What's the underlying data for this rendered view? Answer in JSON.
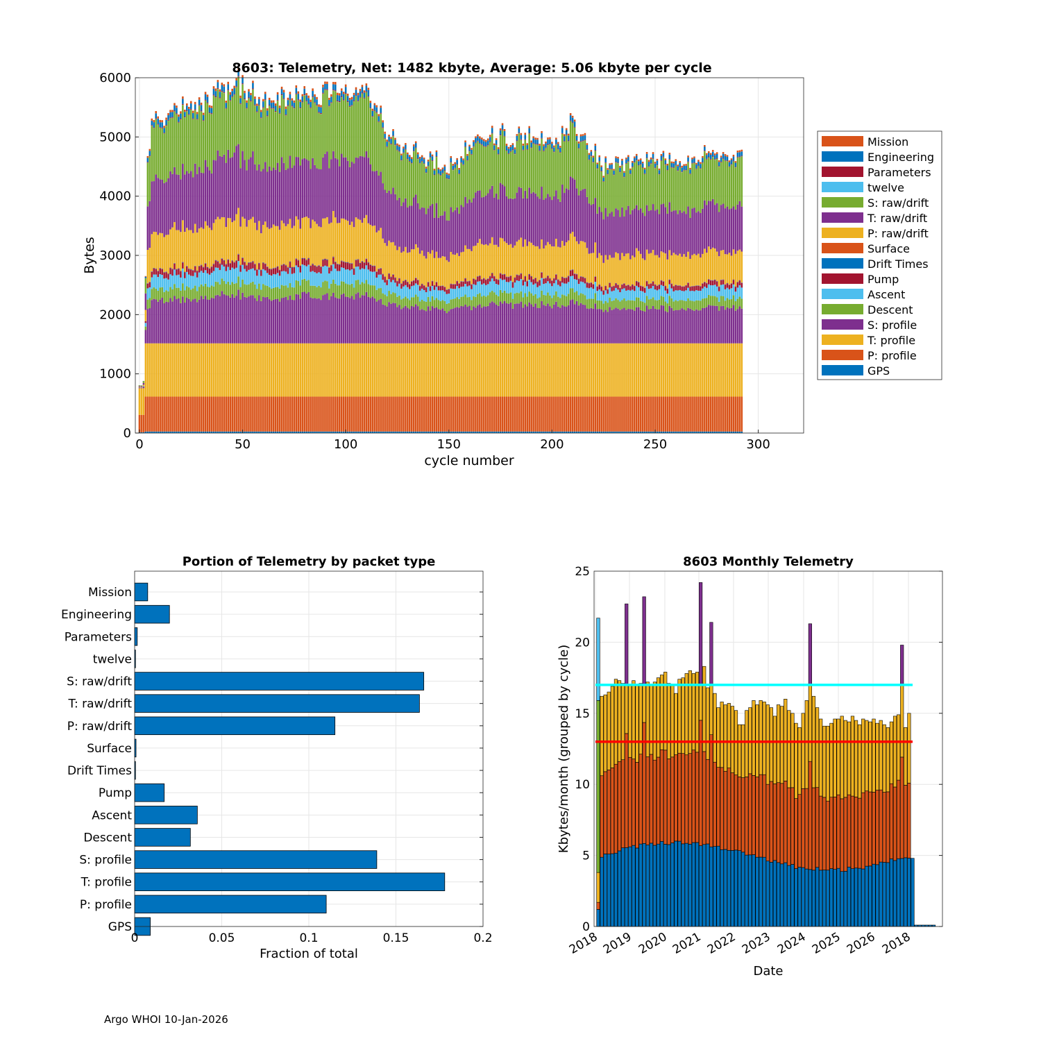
{
  "footer": "Argo WHOI 10-Jan-2026",
  "chart_data": [
    {
      "type": "bar",
      "stacked": true,
      "title": "8603: Telemetry, Net:   1482 kbyte,  Average: 5.06 kbyte per cycle",
      "xlabel": "cycle number",
      "ylabel": "Bytes",
      "xlim": [
        -2,
        322
      ],
      "ylim": [
        0,
        6000
      ],
      "xticks": [
        0,
        50,
        100,
        150,
        200,
        250,
        300
      ],
      "yticks": [
        0,
        1000,
        2000,
        3000,
        4000,
        5000,
        6000
      ],
      "grid": true,
      "legend_position": "right",
      "n_cycles": 293,
      "series_order_bottom_to_top": [
        "GPS",
        "P: profile",
        "T: profile",
        "S: profile",
        "Descent",
        "Ascent",
        "Pump",
        "Drift Times",
        "Surface",
        "P: raw/drift",
        "T: raw/drift",
        "S: raw/drift",
        "twelve",
        "Parameters",
        "Engineering",
        "Mission"
      ],
      "legend": [
        {
          "name": "Mission",
          "color": "#D95319"
        },
        {
          "name": "Engineering",
          "color": "#0072BD"
        },
        {
          "name": "Parameters",
          "color": "#A2142F"
        },
        {
          "name": "twelve",
          "color": "#4DBEEE"
        },
        {
          "name": "S: raw/drift",
          "color": "#77AC30"
        },
        {
          "name": "T: raw/drift",
          "color": "#7E2F8E"
        },
        {
          "name": "P: raw/drift",
          "color": "#EDB120"
        },
        {
          "name": "Surface",
          "color": "#D95319"
        },
        {
          "name": "Drift Times",
          "color": "#0072BD"
        },
        {
          "name": "Pump",
          "color": "#A2142F"
        },
        {
          "name": "Ascent",
          "color": "#4DBEEE"
        },
        {
          "name": "Descent",
          "color": "#77AC30"
        },
        {
          "name": "S: profile",
          "color": "#7E2F8E"
        },
        {
          "name": "T: profile",
          "color": "#EDB120"
        },
        {
          "name": "P: profile",
          "color": "#D95319"
        },
        {
          "name": "GPS",
          "color": "#0072BD"
        }
      ],
      "colors": {
        "GPS": "#0072BD",
        "P: profile": "#D95319",
        "T: profile": "#EDB120",
        "S: profile": "#7E2F8E",
        "Descent": "#77AC30",
        "Ascent": "#4DBEEE",
        "Pump": "#A2142F",
        "Drift Times": "#0072BD",
        "Surface": "#D95319",
        "P: raw/drift": "#EDB120",
        "T: raw/drift": "#7E2F8E",
        "S: raw/drift": "#77AC30",
        "twelve": "#4DBEEE",
        "Parameters": "#A2142F",
        "Engineering": "#0072BD",
        "Mission": "#D95319"
      },
      "typical_cycle_bytes": {
        "GPS": 25,
        "P: profile": 590,
        "T: profile": 900,
        "S: profile": 600,
        "Descent": 160,
        "Ascent": 180,
        "Pump": 80,
        "Drift Times": 5,
        "Surface": 5,
        "P: raw/drift": 520,
        "T: raw/drift": 780,
        "S: raw/drift": 760,
        "twelve": 2,
        "Parameters": 10,
        "Engineering": 70,
        "Mission": 30
      },
      "cycle_total_profile_keyframes": [
        [
          0,
          1200
        ],
        [
          1,
          480
        ],
        [
          2,
          1900
        ],
        [
          3,
          2600
        ],
        [
          4,
          4700
        ],
        [
          6,
          5300
        ],
        [
          20,
          5500
        ],
        [
          50,
          5900
        ],
        [
          60,
          5600
        ],
        [
          90,
          5800
        ],
        [
          110,
          5800
        ],
        [
          120,
          5000
        ],
        [
          150,
          4450
        ],
        [
          165,
          5050
        ],
        [
          200,
          4950
        ],
        [
          211,
          5250
        ],
        [
          225,
          4500
        ],
        [
          250,
          4650
        ],
        [
          265,
          4600
        ],
        [
          292,
          4750
        ]
      ]
    },
    {
      "type": "bar",
      "orientation": "horizontal",
      "title": "Portion of Telemetry by packet type",
      "xlabel": "Fraction of total",
      "ylabel": "",
      "xlim": [
        0,
        0.2
      ],
      "xticks": [
        0,
        0.05,
        0.1,
        0.15,
        0.2
      ],
      "xtick_labels": [
        "0",
        "0.05",
        "0.1",
        "0.15",
        "0.2"
      ],
      "grid": true,
      "categories": [
        "Mission",
        "Engineering",
        "Parameters",
        "twelve",
        "S: raw/drift",
        "T: raw/drift",
        "P: raw/drift",
        "Surface",
        "Drift Times",
        "Pump",
        "Ascent",
        "Descent",
        "S: profile",
        "T: profile",
        "P: profile",
        "GPS"
      ],
      "values": [
        0.0075,
        0.02,
        0.0015,
        0.0005,
        0.166,
        0.1635,
        0.115,
        0.0008,
        0.0005,
        0.017,
        0.036,
        0.032,
        0.139,
        0.178,
        0.11,
        0.009
      ],
      "color": "#0072BD"
    },
    {
      "type": "bar",
      "stacked": true,
      "title": "8603 Monthly Telemetry",
      "xlabel": "Date",
      "ylabel": "Kbytes/month (grouped by cycle)",
      "ylim": [
        0,
        25
      ],
      "yticks": [
        0,
        5,
        10,
        15,
        20,
        25
      ],
      "xtick_labels": [
        "2018",
        "2019",
        "2020",
        "2021",
        "2022",
        "2023",
        "2024",
        "2025",
        "2026",
        "2018"
      ],
      "grid": true,
      "reference_lines": [
        {
          "value": 17,
          "color": "#00FFFF"
        },
        {
          "value": 13,
          "color": "#FF0000"
        }
      ],
      "series_colors": [
        "#0072BD",
        "#D95319",
        "#EDB120",
        "#7E2F8E",
        "#77AC30",
        "#4DBEEE"
      ],
      "months_first_is_partial": true,
      "n_months": 96,
      "monthly_totals": [
        21.7,
        16.2,
        16.3,
        16.5,
        16.9,
        17.4,
        17.3,
        17.1,
        22.7,
        17.0,
        17.3,
        17.0,
        17.1,
        23.2,
        17.2,
        17.0,
        17.2,
        17.5,
        17.7,
        17.9,
        17.1,
        17.0,
        16.4,
        17.4,
        17.5,
        17.8,
        18.0,
        17.8,
        17.9,
        24.2,
        18.3,
        16.8,
        21.4,
        16.4,
        15.4,
        15.8,
        15.6,
        15.7,
        15.5,
        15.2,
        14.2,
        14.2,
        15.2,
        15.4,
        15.9,
        15.6,
        15.9,
        15.8,
        15.6,
        15.4,
        14.8,
        15.6,
        15.5,
        16.0,
        15.2,
        15.0,
        14.3,
        14.0,
        15.0,
        15.9,
        21.3,
        16.2,
        15.4,
        14.6,
        14.1,
        14.1,
        14.3,
        14.6,
        14.6,
        14.8,
        14.5,
        14.4,
        14.8,
        14.5,
        14.2,
        14.6,
        14.5,
        14.4,
        14.6,
        14.3,
        14.5,
        14.2,
        14.0,
        14.4,
        14.8,
        14.9,
        19.8,
        14.0,
        15.0,
        4.8,
        0.1,
        0.1,
        0.1,
        0.1,
        0.1,
        0.1
      ]
    }
  ]
}
